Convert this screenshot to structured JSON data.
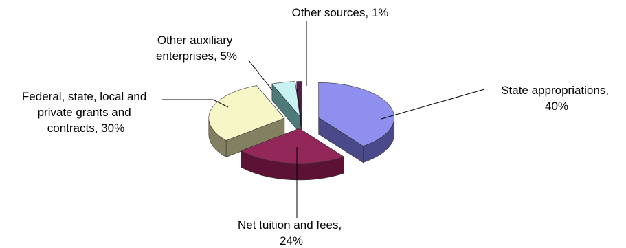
{
  "chart_data": {
    "type": "pie",
    "style": "3d-exploded",
    "legend": "none",
    "slices": [
      {
        "label": "State appropriations",
        "value": 40,
        "label_lines": [
          "State appropriations,",
          "40%"
        ],
        "color": "#8F8FEF",
        "side_color": "#4A4A8A"
      },
      {
        "label": "Net tuition and fees",
        "value": 24,
        "label_lines": [
          "Net tuition and fees,",
          "24%"
        ],
        "color": "#93275A",
        "side_color": "#5C1235"
      },
      {
        "label": "Federal, state, local and private grants and contracts",
        "value": 30,
        "label_lines": [
          "Federal, state, local and",
          "private grants and",
          "contracts, 30%"
        ],
        "color": "#F7F6C7",
        "side_color": "#828060"
      },
      {
        "label": "Other auxiliary enterprises",
        "value": 5,
        "label_lines": [
          "Other auxiliary",
          "enterprises, 5%"
        ],
        "color": "#C8F2F2",
        "side_color": "#4E7A7A"
      },
      {
        "label": "Other sources",
        "value": 1,
        "label_lines": [
          "Other sources, 1%"
        ],
        "color": "#5A1A4E",
        "side_color": "#36102F"
      }
    ]
  }
}
